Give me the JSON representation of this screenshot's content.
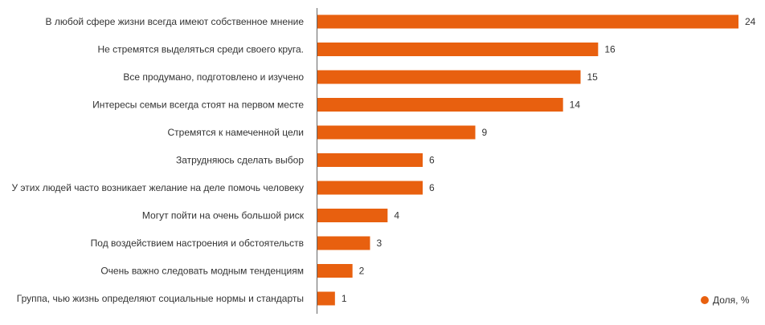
{
  "chart_data": {
    "type": "bar",
    "orientation": "horizontal",
    "categories": [
      "В любой сфере жизни всегда имеют собственное мнение",
      "Не стремятся выделяться среди своего круга.",
      "Все продумано, подготовлено и изучено",
      "Интересы семьи всегда стоят на первом месте",
      "Стремятся к намеченной цели",
      "Затрудняюсь сделать выбор",
      "У этих людей часто возникает желание на деле помочь человеку",
      "Могут пойти на очень большой риск",
      "Под воздействием настроения и обстоятельств",
      "Очень важно следовать модным тенденциям",
      "Группа, чью жизнь определяют социальные нормы и стандарты"
    ],
    "series": [
      {
        "name": "Доля, %",
        "color": "#e8600f",
        "values": [
          24,
          16,
          15,
          14,
          9,
          6,
          6,
          4,
          3,
          2,
          1
        ]
      }
    ],
    "xlim": [
      0,
      24
    ],
    "grid": false,
    "legend": "bottom-right",
    "data_labels": true
  }
}
